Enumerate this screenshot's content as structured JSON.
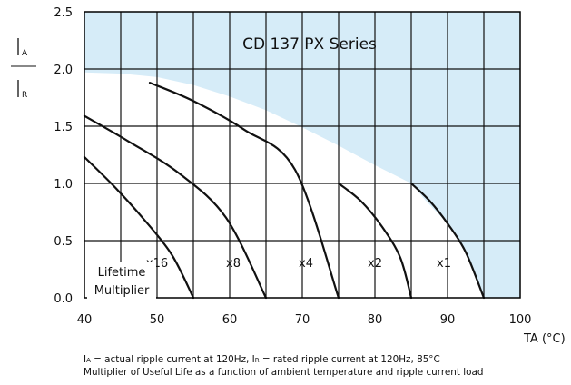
{
  "chart_data": {
    "type": "line",
    "title": "CD 137 PX Series",
    "xlabel": "TA (°C)",
    "ylabel_top": "IA",
    "ylabel_bottom": "IR",
    "xlim": [
      40,
      100
    ],
    "ylim": [
      0,
      2.5
    ],
    "x_ticks": [
      "40",
      "50",
      "60",
      "70",
      "80",
      "90",
      "100"
    ],
    "y_ticks": [
      "0.0",
      "0.5",
      "1.0",
      "1.5",
      "2.0",
      "2.5"
    ],
    "grid": true,
    "region_label": [
      "Lifetime",
      "Multiplier"
    ],
    "series": [
      {
        "name": "x1",
        "x": [
          85,
          87.5,
          90,
          92.5,
          95
        ],
        "y": [
          1.0,
          0.85,
          0.65,
          0.4,
          0.0
        ]
      },
      {
        "name": "x2",
        "x": [
          75,
          78,
          81,
          83.5,
          85
        ],
        "y": [
          1.0,
          0.85,
          0.62,
          0.35,
          0.0
        ]
      },
      {
        "name": "x4",
        "x": [
          49,
          55,
          62,
          69,
          75
        ],
        "y": [
          1.88,
          1.72,
          1.47,
          1.12,
          0.0
        ]
      },
      {
        "name": "x8",
        "x": [
          40,
          46,
          53,
          59.5,
          65
        ],
        "y": [
          1.59,
          1.37,
          1.09,
          0.7,
          0.0
        ]
      },
      {
        "name": "x16",
        "x": [
          40,
          44,
          48,
          52,
          55
        ],
        "y": [
          1.23,
          0.98,
          0.7,
          0.38,
          0.0
        ]
      }
    ]
  },
  "footnote": {
    "line1": "IA = actual ripple current at 120Hz, IR = rated ripple current at 120Hz, 85°C",
    "line2": "Multiplier of Useful Life as a function of ambient temperature and ripple current load"
  },
  "colors": {
    "shade": "#d6ecf8",
    "line": "#111111"
  }
}
